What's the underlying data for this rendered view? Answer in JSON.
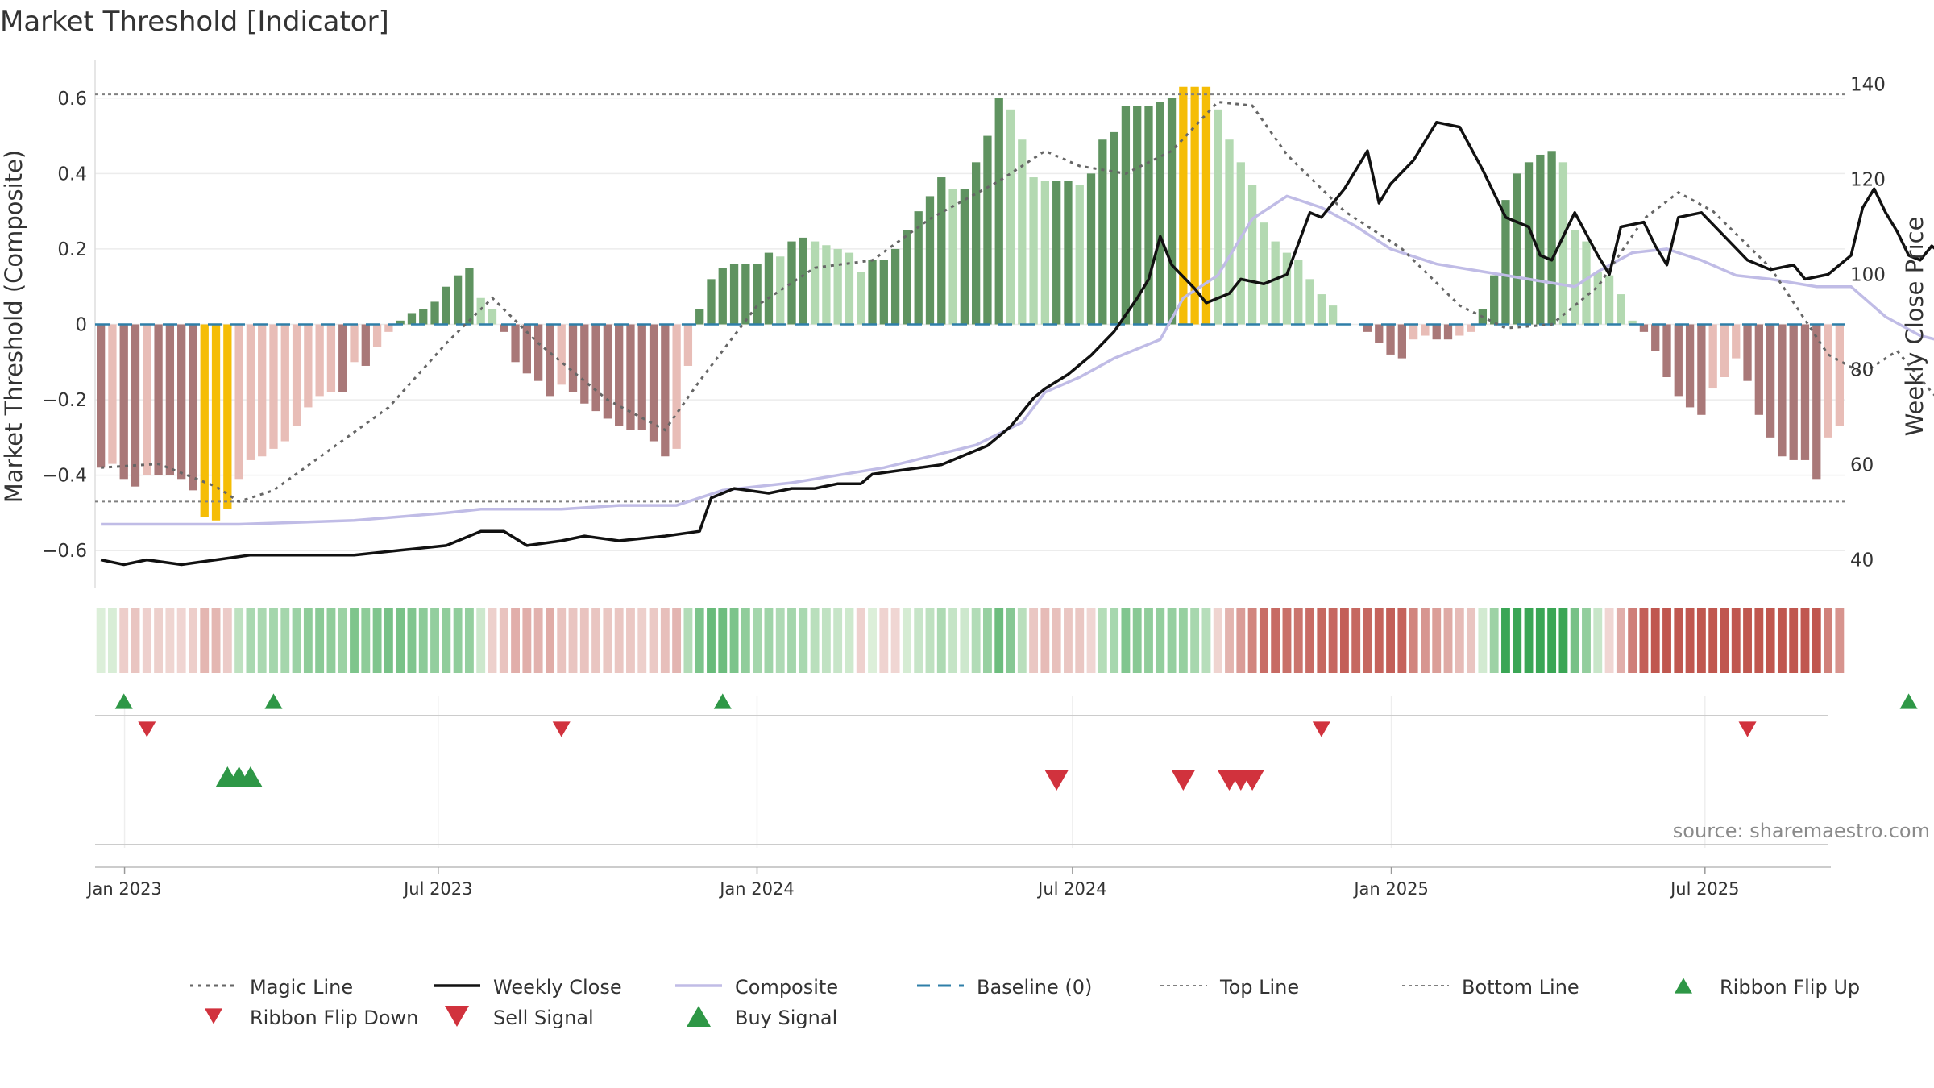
{
  "chart_data": {
    "type": "bar",
    "title": "Market Threshold [Indicator]",
    "ylabel": "Market Threshold (Composite)",
    "y2label": "Weekly Close Price",
    "ylim": [
      -0.7,
      0.7
    ],
    "y2lim": [
      34,
      145
    ],
    "yticks": [
      -0.6,
      -0.4,
      -0.2,
      0,
      0.2,
      0.4,
      0.6
    ],
    "ytick_labels": [
      "−0.6",
      "−0.4",
      "−0.2",
      "0",
      "0.2",
      "0.4",
      "0.6"
    ],
    "y2ticks": [
      40,
      60,
      80,
      100,
      120,
      140
    ],
    "x_range": [
      "2022-12-15",
      "2025-09-20"
    ],
    "xticks": [
      {
        "date": "2023-01-01",
        "label": "Jan 2023"
      },
      {
        "date": "2023-07-01",
        "label": "Jul 2023"
      },
      {
        "date": "2024-01-01",
        "label": "Jan 2024"
      },
      {
        "date": "2024-07-01",
        "label": "Jul 2024"
      },
      {
        "date": "2025-01-01",
        "label": "Jan 2025"
      },
      {
        "date": "2025-07-01",
        "label": "Jul 2025"
      }
    ],
    "top_line": 0.61,
    "bottom_line": -0.47,
    "baseline": 0,
    "grid": true,
    "source": "source: sharemaestro.com",
    "composite_bars": [
      -0.38,
      -0.37,
      -0.41,
      -0.43,
      -0.4,
      -0.4,
      -0.4,
      -0.41,
      -0.44,
      -0.51,
      -0.52,
      -0.49,
      -0.41,
      -0.36,
      -0.35,
      -0.33,
      -0.31,
      -0.27,
      -0.22,
      -0.19,
      -0.18,
      -0.18,
      -0.1,
      -0.11,
      -0.06,
      -0.02,
      0.01,
      0.03,
      0.04,
      0.06,
      0.1,
      0.13,
      0.15,
      0.07,
      0.04,
      -0.02,
      -0.1,
      -0.13,
      -0.15,
      -0.19,
      -0.16,
      -0.18,
      -0.21,
      -0.23,
      -0.25,
      -0.27,
      -0.28,
      -0.28,
      -0.31,
      -0.35,
      -0.33,
      -0.11,
      0.04,
      0.12,
      0.15,
      0.16,
      0.16,
      0.16,
      0.19,
      0.18,
      0.22,
      0.23,
      0.22,
      0.21,
      0.2,
      0.19,
      0.14,
      0.17,
      0.17,
      0.2,
      0.25,
      0.3,
      0.34,
      0.39,
      0.36,
      0.36,
      0.43,
      0.5,
      0.6,
      0.57,
      0.49,
      0.39,
      0.38,
      0.38,
      0.38,
      0.37,
      0.4,
      0.49,
      0.51,
      0.58,
      0.58,
      0.58,
      0.59,
      0.6,
      0.63,
      0.63,
      0.63,
      0.57,
      0.49,
      0.43,
      0.37,
      0.27,
      0.22,
      0.19,
      0.17,
      0.12,
      0.08,
      0.05,
      0.0,
      0.0,
      -0.02,
      -0.05,
      -0.08,
      -0.09,
      -0.04,
      -0.03,
      -0.04,
      -0.04,
      -0.03,
      -0.02,
      0.04,
      0.13,
      0.33,
      0.4,
      0.43,
      0.45,
      0.46,
      0.43,
      0.25,
      0.22,
      0.14,
      0.13,
      0.08,
      0.01,
      -0.02,
      -0.07,
      -0.14,
      -0.19,
      -0.22,
      -0.24,
      -0.17,
      -0.14,
      -0.09,
      -0.15,
      -0.24,
      -0.3,
      -0.35,
      -0.36,
      -0.36,
      -0.41,
      -0.3,
      -0.27
    ],
    "magic_line": [
      [
        0,
        -0.38
      ],
      [
        5,
        -0.37
      ],
      [
        10,
        -0.43
      ],
      [
        12,
        -0.47
      ],
      [
        15,
        -0.44
      ],
      [
        20,
        -0.33
      ],
      [
        25,
        -0.22
      ],
      [
        30,
        -0.05
      ],
      [
        34,
        0.07
      ],
      [
        38,
        -0.05
      ],
      [
        44,
        -0.2
      ],
      [
        49,
        -0.28
      ],
      [
        52,
        -0.15
      ],
      [
        57,
        0.05
      ],
      [
        62,
        0.15
      ],
      [
        67,
        0.17
      ],
      [
        72,
        0.28
      ],
      [
        78,
        0.38
      ],
      [
        82,
        0.46
      ],
      [
        85,
        0.42
      ],
      [
        89,
        0.4
      ],
      [
        93,
        0.46
      ],
      [
        97,
        0.59
      ],
      [
        100,
        0.58
      ],
      [
        103,
        0.45
      ],
      [
        108,
        0.3
      ],
      [
        113,
        0.2
      ],
      [
        118,
        0.05
      ],
      [
        122,
        -0.01
      ],
      [
        126,
        0.0
      ],
      [
        130,
        0.1
      ],
      [
        134,
        0.28
      ],
      [
        137,
        0.35
      ],
      [
        140,
        0.3
      ],
      [
        145,
        0.15
      ],
      [
        150,
        -0.08
      ],
      [
        153,
        -0.13
      ],
      [
        156,
        -0.07
      ],
      [
        159,
        -0.18
      ],
      [
        163,
        -0.3
      ],
      [
        166,
        -0.3
      ]
    ],
    "composite_line": [
      [
        0,
        -0.53
      ],
      [
        12,
        -0.53
      ],
      [
        22,
        -0.52
      ],
      [
        30,
        -0.5
      ],
      [
        33,
        -0.49
      ],
      [
        36,
        -0.49
      ],
      [
        40,
        -0.49
      ],
      [
        45,
        -0.48
      ],
      [
        50,
        -0.48
      ],
      [
        54,
        -0.44
      ],
      [
        60,
        -0.42
      ],
      [
        68,
        -0.38
      ],
      [
        72,
        -0.35
      ],
      [
        76,
        -0.32
      ],
      [
        80,
        -0.26
      ],
      [
        82,
        -0.18
      ],
      [
        85,
        -0.14
      ],
      [
        88,
        -0.09
      ],
      [
        92,
        -0.04
      ],
      [
        94,
        0.07
      ],
      [
        97,
        0.13
      ],
      [
        100,
        0.28
      ],
      [
        103,
        0.34
      ],
      [
        106,
        0.31
      ],
      [
        109,
        0.26
      ],
      [
        112,
        0.2
      ],
      [
        116,
        0.16
      ],
      [
        120,
        0.14
      ],
      [
        124,
        0.12
      ],
      [
        128,
        0.1
      ],
      [
        130,
        0.14
      ],
      [
        133,
        0.19
      ],
      [
        136,
        0.2
      ],
      [
        139,
        0.17
      ],
      [
        142,
        0.13
      ],
      [
        145,
        0.12
      ],
      [
        149,
        0.1
      ],
      [
        152,
        0.1
      ],
      [
        155,
        0.02
      ],
      [
        158,
        -0.03
      ],
      [
        162,
        -0.06
      ],
      [
        166,
        -0.07
      ]
    ],
    "weekly_close": [
      [
        0,
        40
      ],
      [
        2,
        39
      ],
      [
        4,
        40
      ],
      [
        7,
        39
      ],
      [
        10,
        40
      ],
      [
        13,
        41
      ],
      [
        18,
        41
      ],
      [
        22,
        41
      ],
      [
        26,
        42
      ],
      [
        30,
        43
      ],
      [
        33,
        46
      ],
      [
        35,
        46
      ],
      [
        37,
        43
      ],
      [
        40,
        44
      ],
      [
        42,
        45
      ],
      [
        45,
        44
      ],
      [
        49,
        45
      ],
      [
        52,
        46
      ],
      [
        53,
        53
      ],
      [
        55,
        55
      ],
      [
        58,
        54
      ],
      [
        60,
        55
      ],
      [
        62,
        55
      ],
      [
        64,
        56
      ],
      [
        66,
        56
      ],
      [
        67,
        58
      ],
      [
        70,
        59
      ],
      [
        73,
        60
      ],
      [
        75,
        62
      ],
      [
        77,
        64
      ],
      [
        79,
        68
      ],
      [
        81,
        74
      ],
      [
        82,
        76
      ],
      [
        84,
        79
      ],
      [
        86,
        83
      ],
      [
        88,
        88
      ],
      [
        90,
        95
      ],
      [
        91,
        99
      ],
      [
        92,
        108
      ],
      [
        93,
        102
      ],
      [
        95,
        97
      ],
      [
        96,
        94
      ],
      [
        98,
        96
      ],
      [
        99,
        99
      ],
      [
        101,
        98
      ],
      [
        103,
        100
      ],
      [
        105,
        113
      ],
      [
        106,
        112
      ],
      [
        108,
        118
      ],
      [
        110,
        126
      ],
      [
        111,
        115
      ],
      [
        112,
        119
      ],
      [
        114,
        124
      ],
      [
        116,
        132
      ],
      [
        118,
        131
      ],
      [
        120,
        122
      ],
      [
        122,
        112
      ],
      [
        124,
        110
      ],
      [
        125,
        104
      ],
      [
        126,
        103
      ],
      [
        128,
        113
      ],
      [
        130,
        104
      ],
      [
        131,
        100
      ],
      [
        132,
        110
      ],
      [
        134,
        111
      ],
      [
        135,
        106
      ],
      [
        136,
        102
      ],
      [
        137,
        112
      ],
      [
        139,
        113
      ],
      [
        141,
        108
      ],
      [
        143,
        103
      ],
      [
        145,
        101
      ],
      [
        147,
        102
      ],
      [
        148,
        99
      ],
      [
        150,
        100
      ],
      [
        152,
        104
      ],
      [
        153,
        114
      ],
      [
        154,
        118
      ],
      [
        155,
        113
      ],
      [
        156,
        109
      ],
      [
        157,
        104
      ],
      [
        158,
        103
      ],
      [
        159,
        106
      ],
      [
        160,
        104
      ],
      [
        161,
        103
      ],
      [
        162,
        102
      ],
      [
        163,
        100
      ],
      [
        164,
        101
      ],
      [
        165,
        100
      ],
      [
        166,
        103
      ]
    ],
    "ribbon_flip_up": [
      2,
      15,
      54,
      157
    ],
    "ribbon_flip_down": [
      4,
      40,
      106,
      143
    ],
    "buy_signal": [
      11,
      12,
      13
    ],
    "sell_signal": [
      83,
      94,
      98,
      99,
      100
    ],
    "legend": [
      {
        "label": "Magic Line",
        "kind": "magic"
      },
      {
        "label": "Weekly Close",
        "kind": "close"
      },
      {
        "label": "Composite",
        "kind": "composite"
      },
      {
        "label": "Baseline (0)",
        "kind": "baseline"
      },
      {
        "label": "Top Line",
        "kind": "top"
      },
      {
        "label": "Bottom Line",
        "kind": "bottom"
      },
      {
        "label": "Ribbon Flip Up",
        "kind": "flipup"
      },
      {
        "label": "Ribbon Flip Down",
        "kind": "flipdown"
      },
      {
        "label": "Sell Signal",
        "kind": "sell"
      },
      {
        "label": "Buy Signal",
        "kind": "buy"
      }
    ],
    "colors": {
      "pos_strong": "#5f9360",
      "pos_light": "#b3d9b1",
      "neg_strong": "#a97878",
      "neg_light": "#e8bdb7",
      "extreme": "#f5bd06",
      "magic": "#666666",
      "close": "#111111",
      "composite": "#c0bce6",
      "baseline": "#2f7fa8",
      "ref": "#808080",
      "up": "#2e9746",
      "down": "#d1323d"
    }
  }
}
